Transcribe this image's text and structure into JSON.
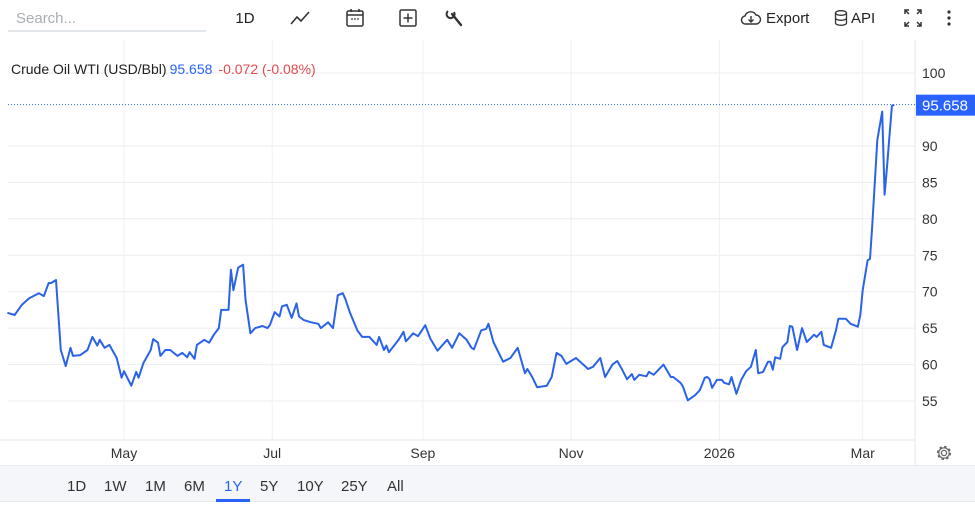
{
  "toolbar": {
    "search_placeholder": "Search...",
    "interval_label": "1D",
    "icons": [
      "line-chart-icon",
      "calendar-icon",
      "plus-square-icon",
      "wrench-icon",
      "cloud-download-icon",
      "database-icon",
      "fullscreen-icon",
      "more-vertical-icon"
    ],
    "export_label": "Export",
    "api_label": "API"
  },
  "legend": {
    "name": "Crude Oil WTI (USD/Bbl)",
    "value": "95.658",
    "change": "-0.072 (-0.08%)"
  },
  "range_buttons": [
    "1D",
    "1W",
    "1M",
    "6M",
    "1Y",
    "5Y",
    "10Y",
    "25Y",
    "All"
  ],
  "active_range": "1Y",
  "colors": {
    "line": "#2b63e8",
    "value": "#2962ff",
    "change": "#e5484d",
    "price_tag": "#2962ff"
  },
  "chart_data": {
    "type": "line",
    "title": "",
    "xlabel": "",
    "ylabel": "",
    "ylim": [
      50,
      104
    ],
    "grid": true,
    "y_axis_side": "right",
    "yticks": [
      55,
      60,
      65,
      70,
      75,
      80,
      85,
      90,
      100
    ],
    "xticks": [
      {
        "date": "2025-05-01",
        "label": "May"
      },
      {
        "date": "2025-07-01",
        "label": "Jul"
      },
      {
        "date": "2025-09-01",
        "label": "Sep"
      },
      {
        "date": "2025-11-01",
        "label": "Nov"
      },
      {
        "date": "2026-01-01",
        "label": "2026"
      },
      {
        "date": "2026-03-01",
        "label": "Mar"
      }
    ],
    "last_price_label": "95.658",
    "series": [
      {
        "points": [
          [
            "2025-03-14",
            67.1
          ],
          [
            "2025-03-17",
            66.8
          ],
          [
            "2025-03-20",
            68.2
          ],
          [
            "2025-03-23",
            69.1
          ],
          [
            "2025-03-27",
            69.8
          ],
          [
            "2025-03-29",
            69.4
          ],
          [
            "2025-03-31",
            71.2
          ],
          [
            "2025-04-01",
            71.2
          ],
          [
            "2025-04-03",
            71.6
          ],
          [
            "2025-04-05",
            62.0
          ],
          [
            "2025-04-07",
            59.8
          ],
          [
            "2025-04-09",
            62.3
          ],
          [
            "2025-04-10",
            61.2
          ],
          [
            "2025-04-13",
            61.3
          ],
          [
            "2025-04-16",
            62.0
          ],
          [
            "2025-04-18",
            63.8
          ],
          [
            "2025-04-20",
            62.6
          ],
          [
            "2025-04-21",
            63.4
          ],
          [
            "2025-04-23",
            62.3
          ],
          [
            "2025-04-25",
            62.7
          ],
          [
            "2025-04-28",
            60.9
          ],
          [
            "2025-04-30",
            58.2
          ],
          [
            "2025-05-01",
            59.1
          ],
          [
            "2025-05-04",
            57.1
          ],
          [
            "2025-05-06",
            59.0
          ],
          [
            "2025-05-07",
            58.2
          ],
          [
            "2025-05-09",
            60.2
          ],
          [
            "2025-05-12",
            62.0
          ],
          [
            "2025-05-13",
            63.5
          ],
          [
            "2025-05-15",
            63.0
          ],
          [
            "2025-05-16",
            61.2
          ],
          [
            "2025-05-18",
            62.0
          ],
          [
            "2025-05-20",
            62.0
          ],
          [
            "2025-05-23",
            61.2
          ],
          [
            "2025-05-25",
            61.6
          ],
          [
            "2025-05-27",
            61.0
          ],
          [
            "2025-05-28",
            61.7
          ],
          [
            "2025-05-30",
            60.8
          ],
          [
            "2025-05-31",
            62.7
          ],
          [
            "2025-06-03",
            63.4
          ],
          [
            "2025-06-05",
            63.0
          ],
          [
            "2025-06-07",
            64.1
          ],
          [
            "2025-06-09",
            65.0
          ],
          [
            "2025-06-10",
            67.5
          ],
          [
            "2025-06-13",
            67.5
          ],
          [
            "2025-06-14",
            73.0
          ],
          [
            "2025-06-15",
            70.2
          ],
          [
            "2025-06-17",
            73.3
          ],
          [
            "2025-06-19",
            73.7
          ],
          [
            "2025-06-20",
            68.9
          ],
          [
            "2025-06-22",
            64.3
          ],
          [
            "2025-06-24",
            65.0
          ],
          [
            "2025-06-27",
            65.3
          ],
          [
            "2025-06-29",
            65.0
          ],
          [
            "2025-06-30",
            65.4
          ],
          [
            "2025-07-02",
            67.2
          ],
          [
            "2025-07-04",
            66.6
          ],
          [
            "2025-07-05",
            68.0
          ],
          [
            "2025-07-07",
            68.2
          ],
          [
            "2025-07-09",
            66.4
          ],
          [
            "2025-07-11",
            68.4
          ],
          [
            "2025-07-12",
            66.6
          ],
          [
            "2025-07-14",
            66.1
          ],
          [
            "2025-07-17",
            65.8
          ],
          [
            "2025-07-20",
            65.6
          ],
          [
            "2025-07-21",
            65.0
          ],
          [
            "2025-07-24",
            65.8
          ],
          [
            "2025-07-26",
            65.0
          ],
          [
            "2025-07-28",
            69.5
          ],
          [
            "2025-07-30",
            69.8
          ],
          [
            "2025-07-31",
            69.1
          ],
          [
            "2025-08-02",
            67.1
          ],
          [
            "2025-08-05",
            64.7
          ],
          [
            "2025-08-07",
            63.8
          ],
          [
            "2025-08-10",
            63.8
          ],
          [
            "2025-08-13",
            62.7
          ],
          [
            "2025-08-14",
            63.8
          ],
          [
            "2025-08-16",
            62.0
          ],
          [
            "2025-08-17",
            62.6
          ],
          [
            "2025-08-18",
            61.7
          ],
          [
            "2025-08-22",
            63.4
          ],
          [
            "2025-08-24",
            64.5
          ],
          [
            "2025-08-25",
            63.2
          ],
          [
            "2025-08-28",
            64.3
          ],
          [
            "2025-08-30",
            63.9
          ],
          [
            "2025-09-02",
            65.4
          ],
          [
            "2025-09-04",
            63.6
          ],
          [
            "2025-09-07",
            61.9
          ],
          [
            "2025-09-11",
            63.4
          ],
          [
            "2025-09-13",
            62.3
          ],
          [
            "2025-09-16",
            64.3
          ],
          [
            "2025-09-19",
            63.4
          ],
          [
            "2025-09-21",
            62.3
          ],
          [
            "2025-09-22",
            62.1
          ],
          [
            "2025-09-25",
            64.7
          ],
          [
            "2025-09-27",
            64.9
          ],
          [
            "2025-09-28",
            65.6
          ],
          [
            "2025-09-30",
            63.1
          ],
          [
            "2025-10-04",
            60.4
          ],
          [
            "2025-10-07",
            60.9
          ],
          [
            "2025-10-10",
            62.3
          ],
          [
            "2025-10-13",
            58.8
          ],
          [
            "2025-10-14",
            59.4
          ],
          [
            "2025-10-16",
            58.3
          ],
          [
            "2025-10-18",
            56.9
          ],
          [
            "2025-10-22",
            57.1
          ],
          [
            "2025-10-24",
            58.3
          ],
          [
            "2025-10-26",
            61.6
          ],
          [
            "2025-10-28",
            61.2
          ],
          [
            "2025-10-30",
            60.1
          ],
          [
            "2025-11-03",
            60.9
          ],
          [
            "2025-11-08",
            59.4
          ],
          [
            "2025-11-10",
            59.7
          ],
          [
            "2025-11-13",
            60.9
          ],
          [
            "2025-11-15",
            58.3
          ],
          [
            "2025-11-18",
            60.0
          ],
          [
            "2025-11-20",
            60.5
          ],
          [
            "2025-11-22",
            59.3
          ],
          [
            "2025-11-24",
            58.0
          ],
          [
            "2025-11-26",
            58.7
          ],
          [
            "2025-11-27",
            57.9
          ],
          [
            "2025-11-29",
            58.6
          ],
          [
            "2025-12-02",
            58.4
          ],
          [
            "2025-12-03",
            59.0
          ],
          [
            "2025-12-05",
            58.6
          ],
          [
            "2025-12-09",
            60.0
          ],
          [
            "2025-12-12",
            58.3
          ],
          [
            "2025-12-13",
            58.3
          ],
          [
            "2025-12-16",
            57.5
          ],
          [
            "2025-12-17",
            57.0
          ],
          [
            "2025-12-19",
            55.1
          ],
          [
            "2025-12-22",
            55.8
          ],
          [
            "2025-12-24",
            56.5
          ],
          [
            "2025-12-26",
            58.2
          ],
          [
            "2025-12-27",
            58.3
          ],
          [
            "2025-12-28",
            58.0
          ],
          [
            "2025-12-29",
            56.8
          ],
          [
            "2025-12-31",
            57.9
          ],
          [
            "2026-01-02",
            57.9
          ],
          [
            "2026-01-03",
            57.5
          ],
          [
            "2026-01-05",
            57.3
          ],
          [
            "2026-01-06",
            58.3
          ],
          [
            "2026-01-08",
            56.0
          ],
          [
            "2026-01-10",
            57.9
          ],
          [
            "2026-01-12",
            59.1
          ],
          [
            "2026-01-14",
            59.7
          ],
          [
            "2026-01-16",
            62.0
          ],
          [
            "2026-01-17",
            58.8
          ],
          [
            "2026-01-19",
            59.0
          ],
          [
            "2026-01-21",
            60.4
          ],
          [
            "2026-01-22",
            60.4
          ],
          [
            "2026-01-23",
            59.3
          ],
          [
            "2026-01-24",
            61.0
          ],
          [
            "2026-01-26",
            60.8
          ],
          [
            "2026-01-27",
            62.4
          ],
          [
            "2026-01-29",
            63.1
          ],
          [
            "2026-01-30",
            65.3
          ],
          [
            "2026-01-31",
            65.2
          ],
          [
            "2026-02-02",
            62.0
          ],
          [
            "2026-02-04",
            65.0
          ],
          [
            "2026-02-06",
            63.1
          ],
          [
            "2026-02-09",
            64.1
          ],
          [
            "2026-02-10",
            63.8
          ],
          [
            "2026-02-12",
            64.5
          ],
          [
            "2026-02-13",
            62.7
          ],
          [
            "2026-02-16",
            62.3
          ],
          [
            "2026-02-18",
            64.7
          ],
          [
            "2026-02-19",
            66.3
          ],
          [
            "2026-02-22",
            66.3
          ],
          [
            "2026-02-24",
            65.6
          ],
          [
            "2026-02-27",
            65.2
          ],
          [
            "2026-02-28",
            66.8
          ],
          [
            "2026-03-01",
            70.2
          ],
          [
            "2026-03-03",
            74.3
          ],
          [
            "2026-03-04",
            74.5
          ],
          [
            "2026-03-05",
            79.4
          ],
          [
            "2026-03-07",
            90.8
          ],
          [
            "2026-03-09",
            94.7
          ],
          [
            "2026-03-10",
            83.3
          ],
          [
            "2026-03-11",
            87.1
          ],
          [
            "2026-03-13",
            95.5
          ],
          [
            "2026-03-14",
            95.658
          ]
        ]
      }
    ]
  }
}
